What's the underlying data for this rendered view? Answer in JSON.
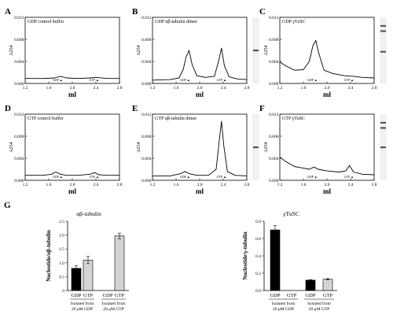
{
  "figure_labels": {
    "panel_g": "G"
  },
  "chart_data": [
    {
      "id": "A",
      "type": "line",
      "title": "GDP control buffer",
      "xlabel": "ml",
      "ylabel": "A254",
      "xlim": [
        1.2,
        2.8
      ],
      "ylim": [
        0.0,
        0.012
      ],
      "xticks": [
        "1.2",
        "1.6",
        "2.0",
        "2.4",
        "2.8"
      ],
      "yticks": [
        "0.000",
        "0.004",
        "0.008",
        "0.012"
      ],
      "peak_labels": [
        {
          "text": "GDP ▲",
          "x": 1.75
        },
        {
          "text": "GTP ▲",
          "x": 2.37
        }
      ],
      "x": [
        1.2,
        1.5,
        1.7,
        1.8,
        1.9,
        2.1,
        2.3,
        2.4,
        2.6,
        2.8
      ],
      "y": [
        0.0009,
        0.0009,
        0.001,
        0.0013,
        0.001,
        0.0009,
        0.001,
        0.0011,
        0.0009,
        0.0009
      ],
      "gel": false
    },
    {
      "id": "B",
      "type": "line",
      "title": "GDP αβ-tubulin dimer",
      "xlabel": "ml",
      "ylabel": "A254",
      "xlim": [
        1.2,
        2.8
      ],
      "ylim": [
        0.0,
        0.012
      ],
      "xticks": [
        "1.2",
        "1.6",
        "2.0",
        "2.4",
        "2.8"
      ],
      "yticks": [
        "0.000",
        "0.004",
        "0.008",
        "0.012"
      ],
      "peak_labels": [
        {
          "text": "GDP ▲",
          "x": 1.75
        },
        {
          "text": "GTP ▲",
          "x": 2.37
        }
      ],
      "x": [
        1.2,
        1.5,
        1.65,
        1.72,
        1.77,
        1.82,
        1.87,
        1.95,
        2.1,
        2.25,
        2.32,
        2.37,
        2.42,
        2.5,
        2.65,
        2.8
      ],
      "y": [
        0.0006,
        0.0007,
        0.001,
        0.0025,
        0.0048,
        0.006,
        0.0035,
        0.0014,
        0.0011,
        0.0013,
        0.004,
        0.0064,
        0.0032,
        0.0012,
        0.0008,
        0.0007
      ],
      "gel": true,
      "gel_bands": [
        0.5
      ]
    },
    {
      "id": "C",
      "type": "line",
      "title": "GDP γTuSC",
      "xlabel": "ml",
      "ylabel": "A254",
      "xlim": [
        1.2,
        2.8
      ],
      "ylim": [
        0.0,
        0.012
      ],
      "xticks": [
        "1.2",
        "1.6",
        "2.0",
        "2.4",
        "2.8"
      ],
      "yticks": [
        "0.000",
        "0.004",
        "0.008",
        "0.012"
      ],
      "peak_labels": [
        {
          "text": "GDP ▲",
          "x": 1.75
        },
        {
          "text": "GTP ▲",
          "x": 2.37
        }
      ],
      "x": [
        1.2,
        1.3,
        1.45,
        1.6,
        1.7,
        1.76,
        1.81,
        1.86,
        1.95,
        2.1,
        2.3,
        2.45,
        2.6,
        2.8
      ],
      "y": [
        0.0039,
        0.0032,
        0.0024,
        0.0025,
        0.004,
        0.0068,
        0.0078,
        0.0055,
        0.0024,
        0.0018,
        0.0014,
        0.0013,
        0.0011,
        0.001
      ],
      "gel": true,
      "gel_bands": [
        0.12,
        0.2,
        0.52
      ]
    },
    {
      "id": "D",
      "type": "line",
      "title": "GTP control buffer",
      "xlabel": "ml",
      "ylabel": "A254",
      "xlim": [
        1.2,
        2.8
      ],
      "ylim": [
        0.0,
        0.012
      ],
      "xticks": [
        "1.2",
        "1.6",
        "2.0",
        "2.4",
        "2.8"
      ],
      "yticks": [
        "0.000",
        "0.004",
        "0.008",
        "0.012"
      ],
      "peak_labels": [
        {
          "text": "GDP ▲",
          "x": 1.75
        },
        {
          "text": "GTP ▲",
          "x": 2.37
        }
      ],
      "x": [
        1.2,
        1.5,
        1.65,
        1.72,
        1.8,
        1.9,
        2.1,
        2.3,
        2.38,
        2.45,
        2.6,
        2.8
      ],
      "y": [
        0.0009,
        0.0009,
        0.0011,
        0.0015,
        0.0011,
        0.0009,
        0.0009,
        0.0011,
        0.0014,
        0.001,
        0.0009,
        0.0009
      ],
      "gel": false
    },
    {
      "id": "E",
      "type": "line",
      "title": "GTP αβ-tubulin dimer",
      "xlabel": "ml",
      "ylabel": "A254",
      "xlim": [
        1.2,
        2.8
      ],
      "ylim": [
        0.0,
        0.012
      ],
      "xticks": [
        "1.2",
        "1.6",
        "2.0",
        "2.4",
        "2.8"
      ],
      "yticks": [
        "0.000",
        "0.004",
        "0.008",
        "0.012"
      ],
      "peak_labels": [
        {
          "text": "GDP ▲",
          "x": 1.75
        },
        {
          "text": "GTP ▲",
          "x": 2.37
        }
      ],
      "x": [
        1.2,
        1.5,
        1.68,
        1.75,
        1.82,
        1.95,
        2.15,
        2.28,
        2.33,
        2.37,
        2.41,
        2.47,
        2.6,
        2.8
      ],
      "y": [
        0.0008,
        0.0008,
        0.0012,
        0.0016,
        0.0012,
        0.0009,
        0.0009,
        0.002,
        0.007,
        0.0107,
        0.0062,
        0.0016,
        0.0009,
        0.0008
      ],
      "gel": true,
      "gel_bands": [
        0.5
      ]
    },
    {
      "id": "F",
      "type": "line",
      "title": "GTP γTuSC",
      "xlabel": "ml",
      "ylabel": "A254",
      "xlim": [
        1.2,
        2.8
      ],
      "ylim": [
        0.0,
        0.012
      ],
      "xticks": [
        "1.2",
        "1.6",
        "2.0",
        "2.4",
        "2.8"
      ],
      "yticks": [
        "0.000",
        "0.004",
        "0.008",
        "0.012"
      ],
      "peak_labels": [
        {
          "text": "GDP ▲",
          "x": 1.75
        },
        {
          "text": "GTP ▲",
          "x": 2.37
        }
      ],
      "x": [
        1.2,
        1.3,
        1.45,
        1.6,
        1.7,
        1.78,
        1.85,
        2.0,
        2.2,
        2.32,
        2.38,
        2.45,
        2.6,
        2.8
      ],
      "y": [
        0.0042,
        0.0034,
        0.0025,
        0.0022,
        0.002,
        0.0024,
        0.002,
        0.0017,
        0.0015,
        0.0017,
        0.0027,
        0.0015,
        0.0011,
        0.001
      ],
      "gel": true,
      "gel_bands": [
        0.12,
        0.2,
        0.5
      ]
    },
    {
      "id": "G-left",
      "type": "bar",
      "title": "αβ-tubulin",
      "ylabel": "Nucleotide/αβ-tubulin",
      "ylim": [
        0,
        2.5
      ],
      "yticks": [
        "0",
        "0.5",
        "1.0",
        "1.5",
        "2.0",
        "2.5"
      ],
      "categories": [
        "GDP",
        "GTP",
        "GDP",
        "GTP"
      ],
      "values": [
        0.8,
        1.1,
        null,
        1.97
      ],
      "errors": [
        0.1,
        0.13,
        null,
        0.1
      ],
      "colors": [
        "#000000",
        "#d4d4d4",
        "#000000",
        "#d4d4d4"
      ],
      "groups": [
        {
          "line1": "Isolated from",
          "line2": "20 μM GDP"
        },
        {
          "line1": "Isolated from",
          "line2": "20 μM GTP"
        }
      ]
    },
    {
      "id": "G-right",
      "type": "bar",
      "title": "γTuSC",
      "ylabel": "Nucleotide/γ-tubulin",
      "ylim": [
        0,
        0.8
      ],
      "yticks": [
        "0.0",
        "0.2",
        "0.4",
        "0.6",
        "0.8"
      ],
      "categories": [
        "GDP",
        "GTP",
        "GDP",
        "GTP"
      ],
      "values": [
        0.7,
        null,
        0.12,
        0.13
      ],
      "errors": [
        0.05,
        null,
        0.005,
        0.007
      ],
      "colors": [
        "#000000",
        "#d4d4d4",
        "#000000",
        "#d4d4d4"
      ],
      "groups": [
        {
          "line1": "Isolated from",
          "line2": "20 μM GDP"
        },
        {
          "line1": "Isolated from",
          "line2": "20 μM GTP"
        }
      ]
    }
  ]
}
